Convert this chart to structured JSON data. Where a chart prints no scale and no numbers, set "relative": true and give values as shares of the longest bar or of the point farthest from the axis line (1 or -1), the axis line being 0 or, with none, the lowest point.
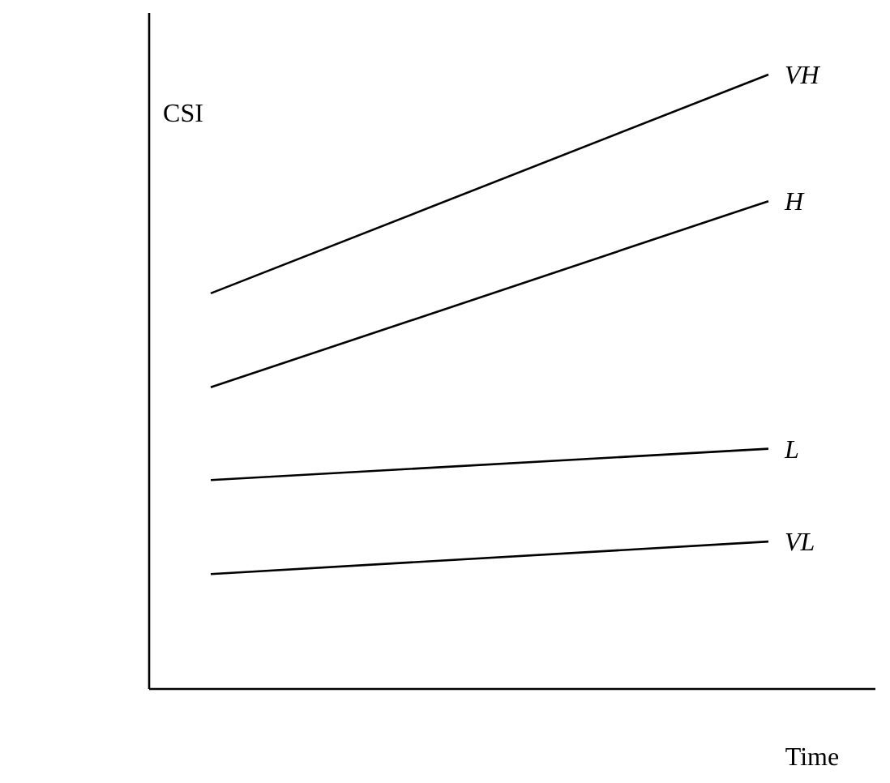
{
  "chart_data": {
    "type": "line",
    "xlabel": "Time",
    "ylabel": "CSI",
    "relative": true,
    "categories": [
      null,
      null
    ],
    "marker": "none",
    "line_style": "solid",
    "series": [
      {
        "name": "VH",
        "color": "#000000",
        "values": [
          0.644,
          1
        ]
      },
      {
        "name": "H",
        "color": "#000000",
        "values": [
          0.491,
          0.794
        ]
      },
      {
        "name": "L",
        "color": "#000000",
        "values": [
          0.34,
          0.391
        ]
      },
      {
        "name": "VL",
        "color": "#000000",
        "values": [
          0.187,
          0.24
        ]
      }
    ]
  }
}
